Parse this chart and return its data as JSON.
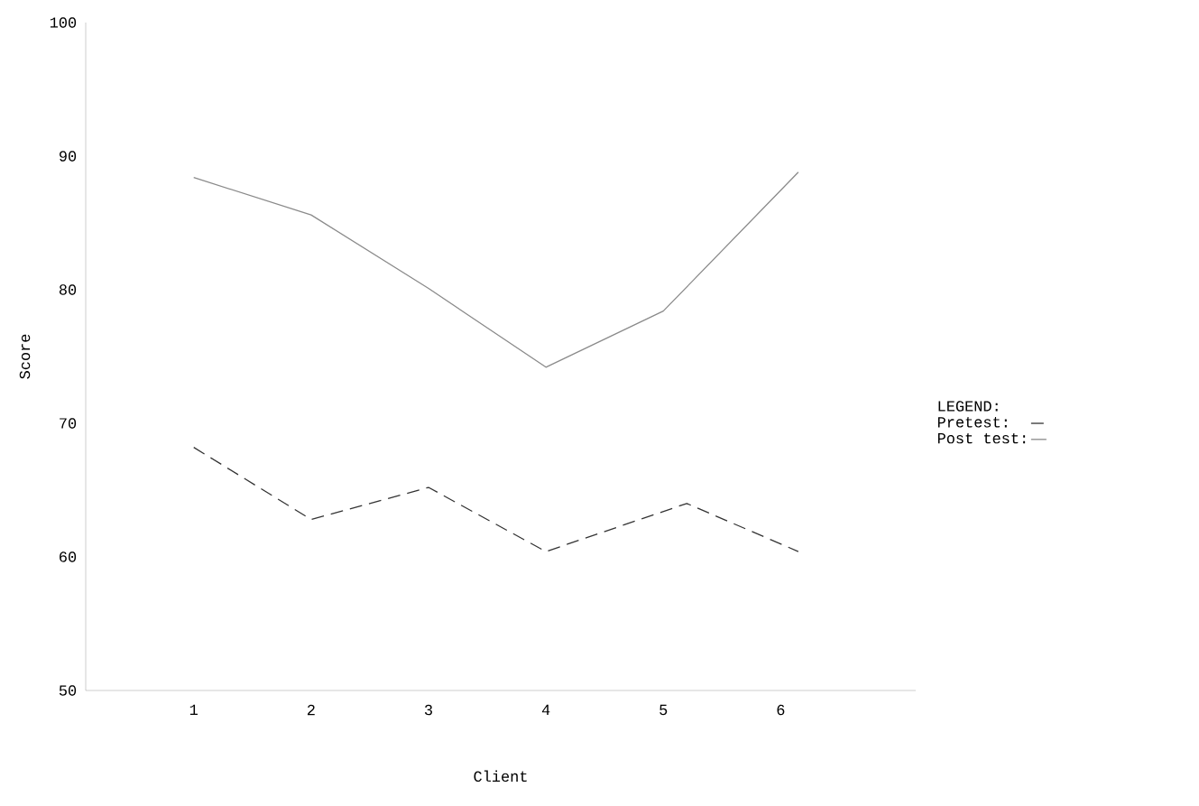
{
  "chart_data": {
    "type": "line",
    "xlabel": "Client",
    "ylabel": "Score",
    "legend_title": "LEGEND:",
    "xlim": [
      0.08,
      7.15
    ],
    "ylim": [
      50,
      100
    ],
    "xticks": [
      1,
      2,
      3,
      4,
      5,
      6
    ],
    "yticks": [
      50,
      60,
      70,
      80,
      90,
      100
    ],
    "legend": "right",
    "grid": false,
    "marker": "none",
    "series": [
      {
        "name": "Pretest:",
        "color": "#333333",
        "line_style": "dashed",
        "x": [
          1,
          2,
          3,
          4,
          5.2,
          6.15
        ],
        "values": [
          68.2,
          62.8,
          65.2,
          60.4,
          64.0,
          60.4
        ]
      },
      {
        "name": "Post test:",
        "color": "#8a8a8a",
        "line_style": "solid",
        "x": [
          1,
          2,
          3,
          4,
          5,
          6.15
        ],
        "values": [
          88.4,
          85.6,
          80.1,
          74.2,
          78.4,
          88.8
        ]
      }
    ]
  }
}
